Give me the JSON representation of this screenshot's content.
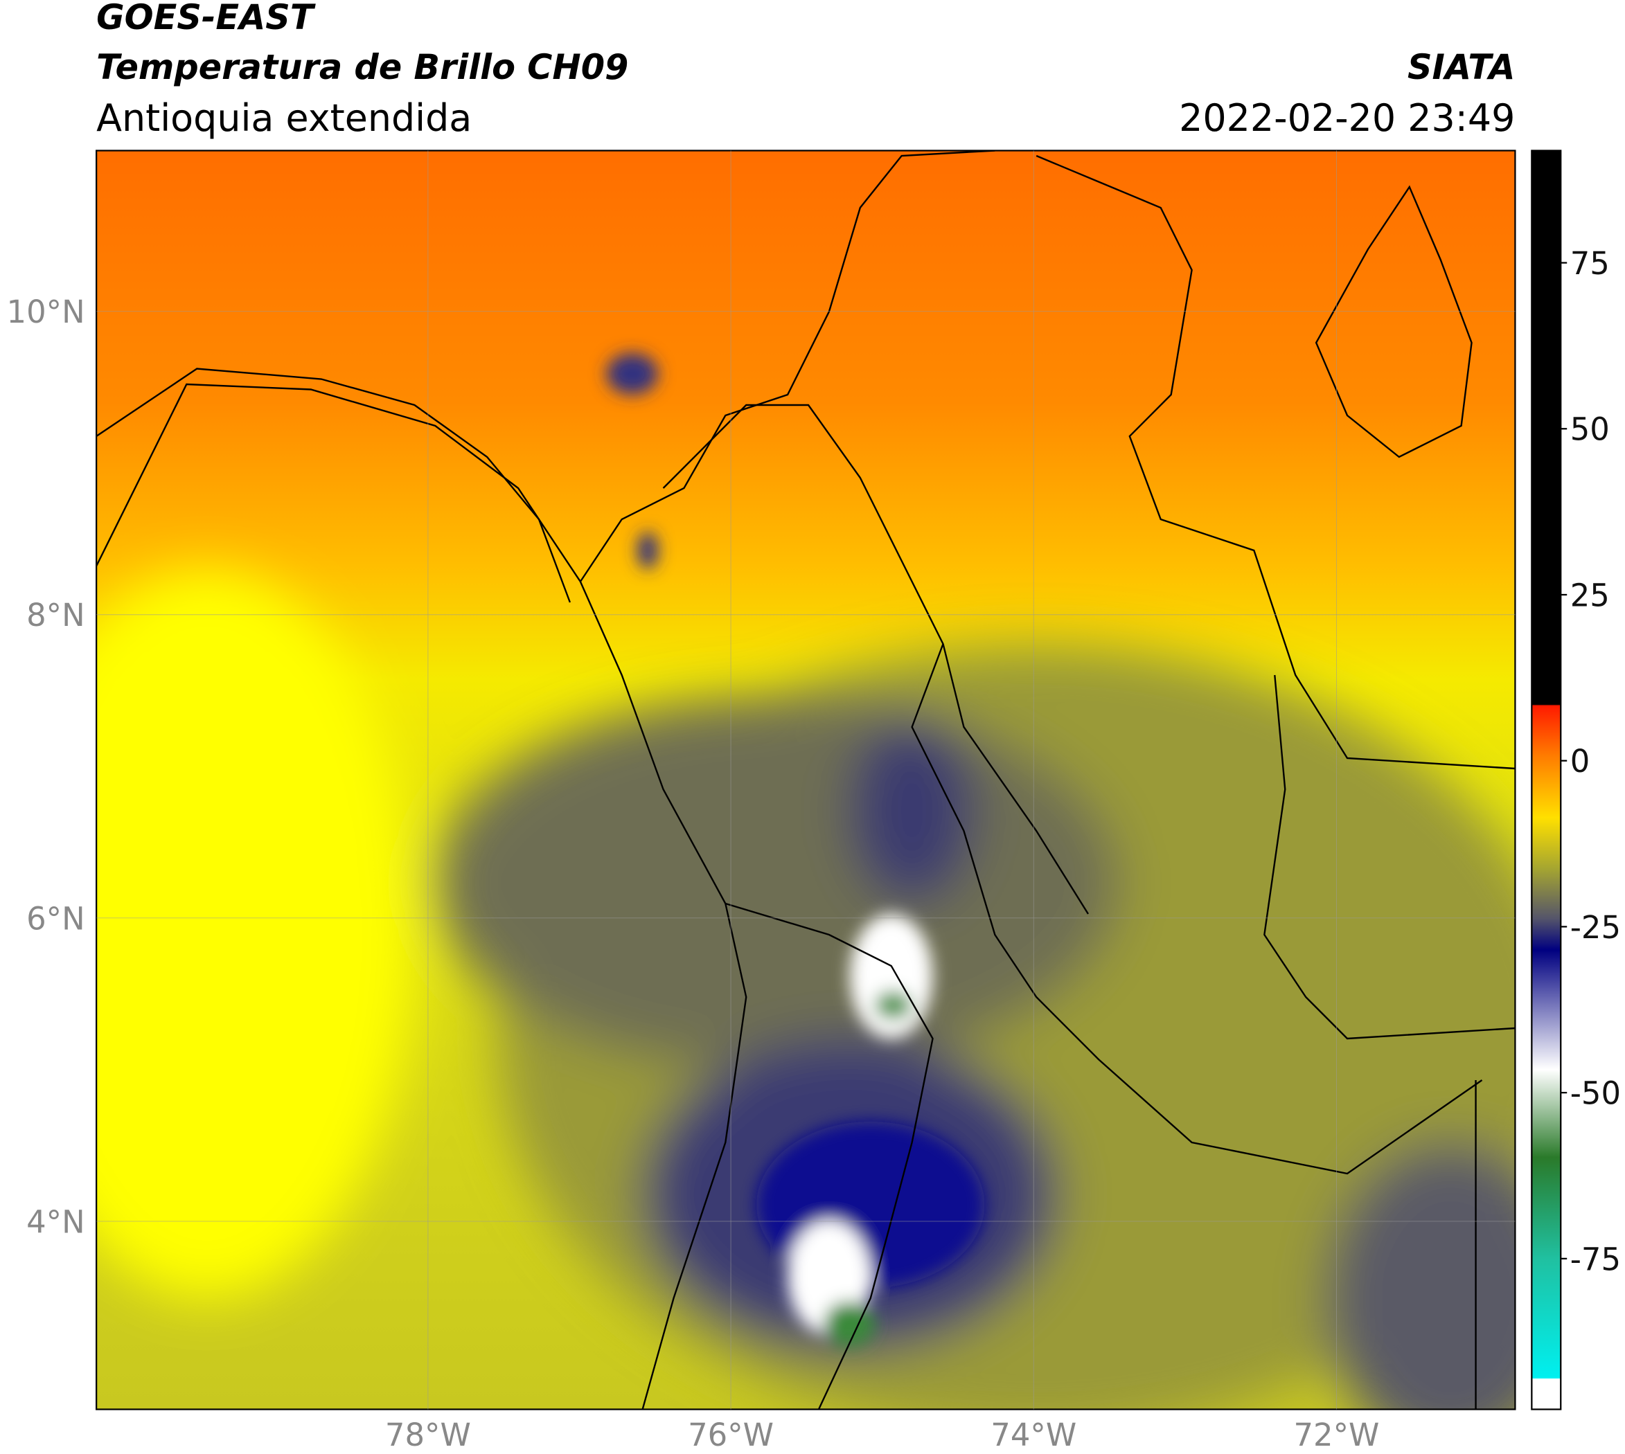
{
  "header": {
    "title": "GOES-EAST",
    "subtitle": "Temperatura de Brillo CH09",
    "region": "Antioquia extendida",
    "source": "SIATA",
    "datetime": "2022-02-20 23:49"
  },
  "map": {
    "lon_lim": [
      -80.19,
      -70.82
    ],
    "lat_lim": [
      2.76,
      11.06
    ],
    "lon_ticks": [
      {
        "value": -78,
        "label": "78°W"
      },
      {
        "value": -76,
        "label": "76°W"
      },
      {
        "value": -74,
        "label": "74°W"
      },
      {
        "value": -72,
        "label": "72°W"
      }
    ],
    "lat_ticks": [
      {
        "value": 10,
        "label": "10°N"
      },
      {
        "value": 8,
        "label": "8°N"
      },
      {
        "value": 6,
        "label": "6°N"
      },
      {
        "value": 4,
        "label": "4°N"
      }
    ],
    "grid": true
  },
  "colorbar": {
    "lim": [
      -97.7,
      91.9
    ],
    "ticks": [
      75,
      50,
      25,
      0,
      -25,
      -50,
      -75
    ]
  }
}
